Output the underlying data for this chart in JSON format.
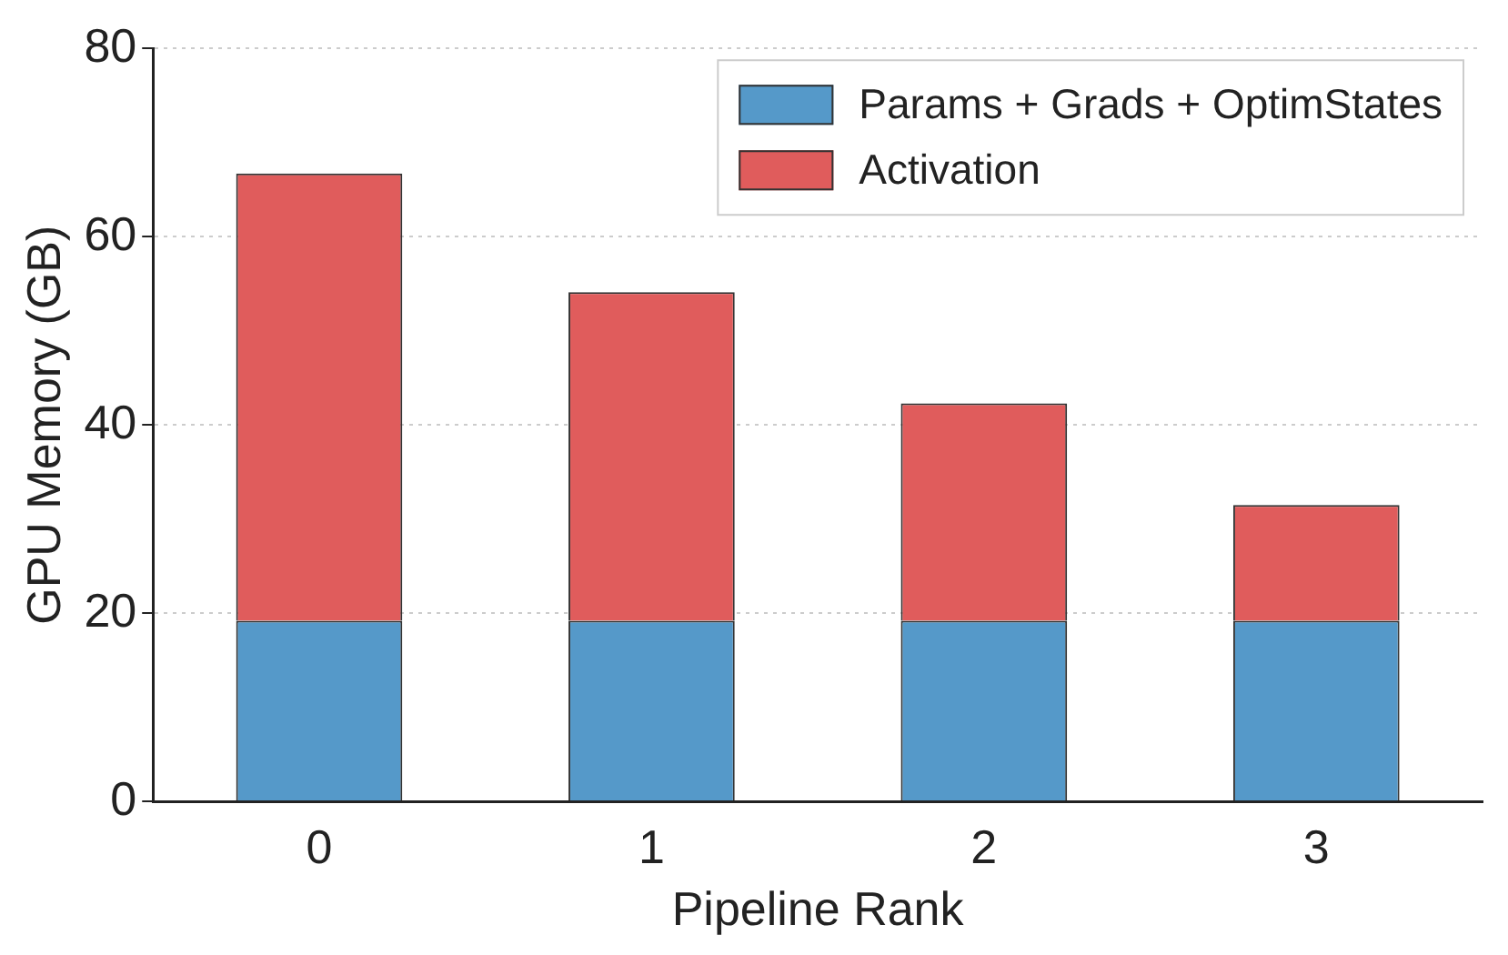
{
  "chart_data": {
    "type": "bar",
    "xlabel": "Pipeline Rank",
    "ylabel": "GPU Memory (GB)",
    "categories": [
      "0",
      "1",
      "2",
      "3"
    ],
    "stacked": true,
    "series": [
      {
        "name": "Params + Grads + OptimStates",
        "color": "#5599c9",
        "values": [
          19.2,
          19.2,
          19.2,
          19.2
        ]
      },
      {
        "name": "Activation",
        "color": "#e05c5c",
        "values": [
          47.5,
          34.9,
          23.1,
          12.3
        ]
      }
    ],
    "ylim": [
      0,
      80
    ],
    "yticks": [
      0,
      20,
      40,
      60,
      80
    ],
    "grid": "y",
    "legend": "top right"
  }
}
